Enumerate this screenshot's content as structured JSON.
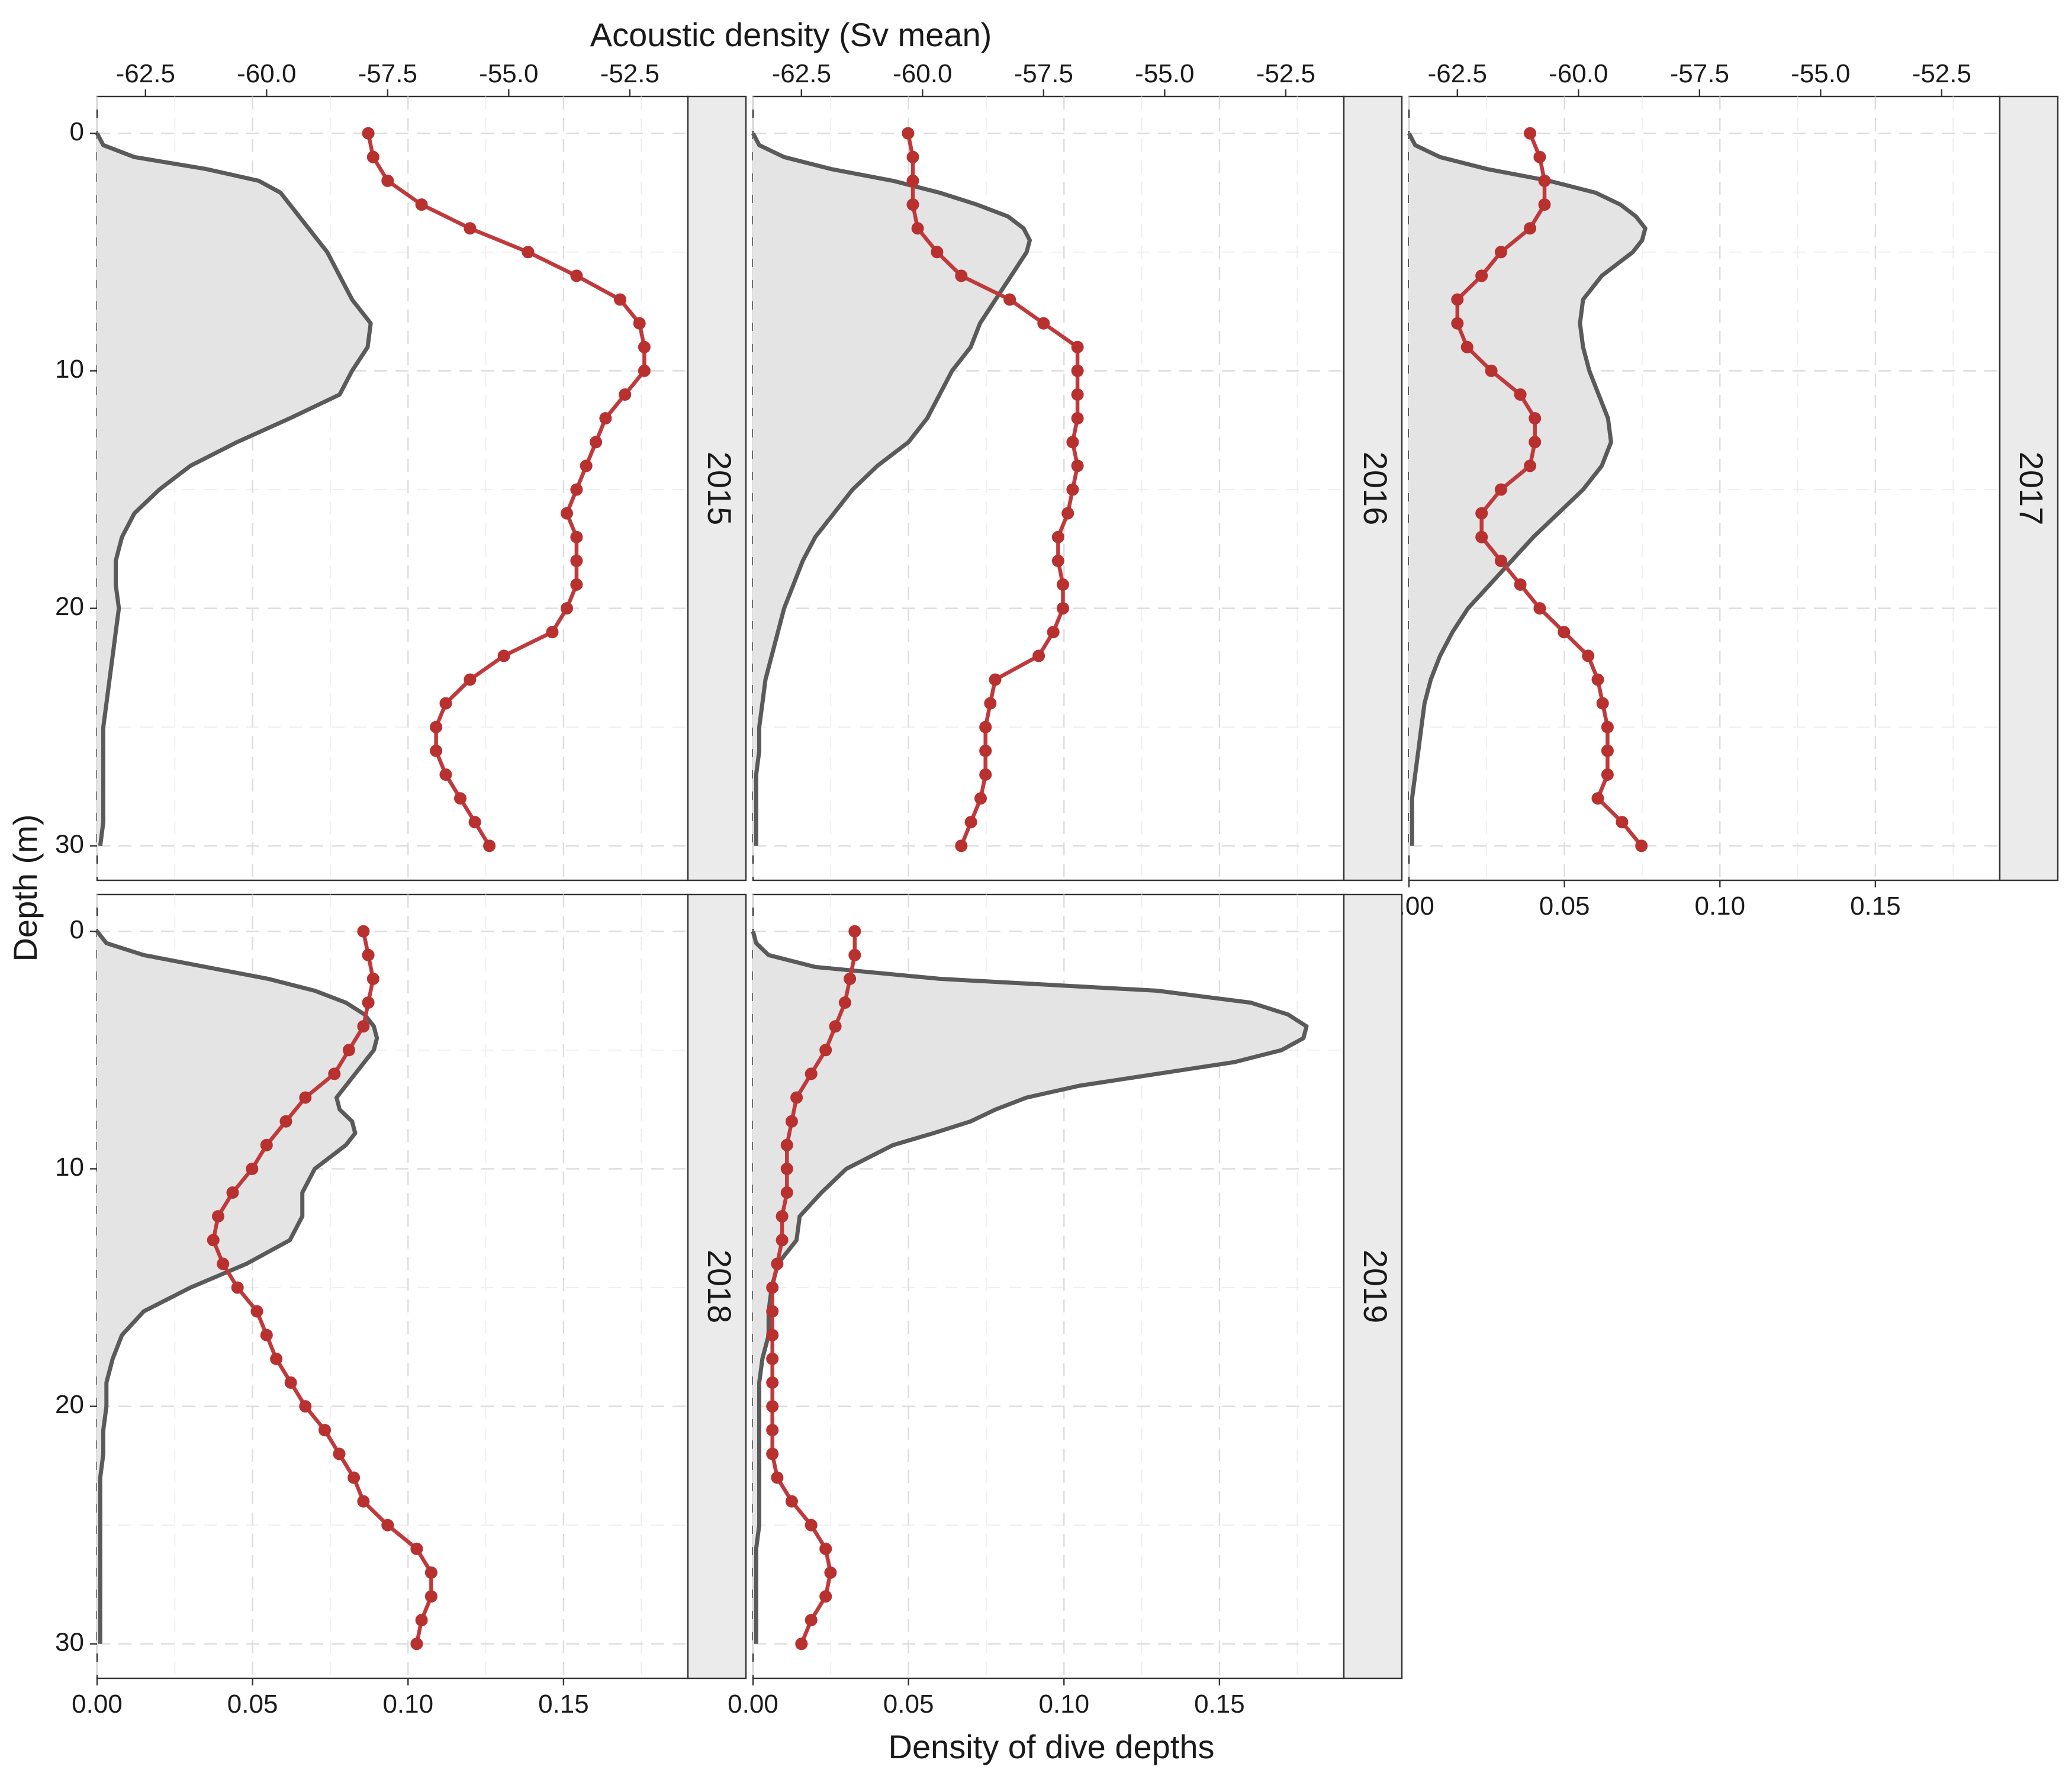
{
  "figure": {
    "ylabel": "Depth (m)",
    "xlabel_bottom": "Density of dive depths",
    "xlabel_top": "Acoustic density (Sv mean)"
  },
  "chart_data": {
    "type": "line",
    "ylabel": "Depth (m)",
    "xlabel": "Density of dive depths",
    "x2label": "Acoustic density (Sv mean)",
    "ylim": [
      0,
      30
    ],
    "y_reversed": true,
    "y_ticks": [
      0,
      10,
      20,
      30
    ],
    "xlim": [
      0,
      0.19
    ],
    "x_ticks": [
      0,
      0.05,
      0.1,
      0.15
    ],
    "x_tick_labels": [
      "0.00",
      "0.05",
      "0.10",
      "0.15"
    ],
    "x2lim": [
      -63.5,
      -51.3
    ],
    "x2_ticks": [
      -62.5,
      -60,
      -57.5,
      -55,
      -52.5
    ],
    "x2_tick_labels": [
      "-62.5",
      "-60.0",
      "-57.5",
      "-55.0",
      "-52.5"
    ],
    "grid": true,
    "colors": {
      "density": "#5a5a5a",
      "density_fill": "#e4e4e4",
      "sv": "#c0393b",
      "strip": "#ebebeb"
    },
    "panels": [
      {
        "label": "2015",
        "density": {
          "depth": [
            0,
            0.5,
            1,
            1.5,
            2,
            2.5,
            3,
            4,
            5,
            6,
            7,
            8,
            9,
            10,
            11,
            12,
            13,
            14,
            15,
            16,
            17,
            18,
            19,
            20,
            21,
            22,
            23,
            24,
            25,
            26,
            27,
            28,
            29,
            30
          ],
          "values": [
            0,
            0.002,
            0.012,
            0.035,
            0.052,
            0.059,
            0.062,
            0.068,
            0.074,
            0.078,
            0.082,
            0.088,
            0.087,
            0.082,
            0.078,
            0.062,
            0.045,
            0.03,
            0.02,
            0.012,
            0.008,
            0.006,
            0.006,
            0.007,
            0.006,
            0.005,
            0.004,
            0.003,
            0.002,
            0.002,
            0.002,
            0.002,
            0.002,
            0.001
          ]
        },
        "sv": {
          "depth": [
            0,
            1,
            2,
            3,
            4,
            5,
            6,
            7,
            8,
            9,
            10,
            11,
            12,
            13,
            14,
            15,
            16,
            17,
            18,
            19,
            20,
            21,
            22,
            23,
            24,
            25,
            26,
            27,
            28,
            29,
            30
          ],
          "values": [
            -57.9,
            -57.8,
            -57.5,
            -56.8,
            -55.8,
            -54.6,
            -53.6,
            -52.7,
            -52.3,
            -52.2,
            -52.2,
            -52.6,
            -53.0,
            -53.2,
            -53.4,
            -53.6,
            -53.8,
            -53.6,
            -53.6,
            -53.6,
            -53.8,
            -54.1,
            -55.1,
            -55.8,
            -56.3,
            -56.5,
            -56.5,
            -56.3,
            -56.0,
            -55.7,
            -55.4
          ]
        }
      },
      {
        "label": "2016",
        "density": {
          "depth": [
            0,
            0.5,
            1,
            1.5,
            2,
            2.5,
            3,
            3.5,
            4,
            4.5,
            5,
            6,
            7,
            8,
            9,
            10,
            11,
            12,
            13,
            14,
            15,
            16,
            17,
            18,
            19,
            20,
            21,
            22,
            23,
            24,
            25,
            26,
            27,
            28,
            29,
            30
          ],
          "values": [
            0,
            0.002,
            0.01,
            0.025,
            0.045,
            0.06,
            0.072,
            0.082,
            0.087,
            0.089,
            0.088,
            0.083,
            0.078,
            0.073,
            0.07,
            0.064,
            0.06,
            0.056,
            0.05,
            0.04,
            0.032,
            0.026,
            0.02,
            0.016,
            0.013,
            0.01,
            0.008,
            0.006,
            0.004,
            0.003,
            0.002,
            0.002,
            0.001,
            0.001,
            0.001,
            0.001
          ]
        },
        "sv": {
          "depth": [
            0,
            1,
            2,
            3,
            4,
            5,
            6,
            7,
            8,
            9,
            10,
            11,
            12,
            13,
            14,
            15,
            16,
            17,
            18,
            19,
            20,
            21,
            22,
            23,
            24,
            25,
            26,
            27,
            28,
            29,
            30
          ],
          "values": [
            -60.3,
            -60.2,
            -60.2,
            -60.2,
            -60.1,
            -59.7,
            -59.2,
            -58.2,
            -57.5,
            -56.8,
            -56.8,
            -56.8,
            -56.8,
            -56.9,
            -56.8,
            -56.9,
            -57.0,
            -57.2,
            -57.2,
            -57.1,
            -57.1,
            -57.3,
            -57.6,
            -58.5,
            -58.6,
            -58.7,
            -58.7,
            -58.7,
            -58.8,
            -59.0,
            -59.2
          ]
        }
      },
      {
        "label": "2017",
        "density": {
          "depth": [
            0,
            0.5,
            1,
            1.5,
            2,
            2.5,
            3,
            3.5,
            4,
            4.5,
            5,
            5.5,
            6,
            7,
            8,
            9,
            10,
            11,
            12,
            13,
            14,
            15,
            16,
            17,
            18,
            19,
            20,
            21,
            22,
            23,
            24,
            25,
            26,
            27,
            28,
            29,
            30
          ],
          "values": [
            0,
            0.002,
            0.01,
            0.025,
            0.045,
            0.06,
            0.068,
            0.073,
            0.076,
            0.075,
            0.072,
            0.067,
            0.062,
            0.056,
            0.055,
            0.056,
            0.058,
            0.061,
            0.064,
            0.065,
            0.062,
            0.056,
            0.048,
            0.04,
            0.033,
            0.026,
            0.019,
            0.014,
            0.01,
            0.007,
            0.005,
            0.004,
            0.003,
            0.002,
            0.001,
            0.001,
            0.001
          ]
        },
        "sv": {
          "depth": [
            0,
            1,
            2,
            3,
            4,
            5,
            6,
            7,
            8,
            9,
            10,
            11,
            12,
            13,
            14,
            15,
            16,
            17,
            18,
            19,
            20,
            21,
            22,
            23,
            24,
            25,
            26,
            27,
            28,
            29,
            30
          ],
          "values": [
            -61.0,
            -60.8,
            -60.7,
            -60.7,
            -61.0,
            -61.6,
            -62.0,
            -62.5,
            -62.5,
            -62.3,
            -61.8,
            -61.2,
            -60.9,
            -60.9,
            -61.0,
            -61.6,
            -62.0,
            -62.0,
            -61.6,
            -61.2,
            -60.8,
            -60.3,
            -59.8,
            -59.6,
            -59.5,
            -59.4,
            -59.4,
            -59.4,
            -59.6,
            -59.1,
            -58.7
          ]
        }
      },
      {
        "label": "2018",
        "density": {
          "depth": [
            0,
            0.5,
            1,
            1.5,
            2,
            2.5,
            3,
            3.5,
            4,
            4.5,
            5,
            6,
            7,
            7.5,
            8,
            8.5,
            9,
            10,
            11,
            12,
            13,
            14,
            15,
            16,
            17,
            18,
            19,
            20,
            21,
            22,
            23,
            24,
            25,
            26,
            27,
            28,
            29,
            30
          ],
          "values": [
            0,
            0.003,
            0.015,
            0.035,
            0.055,
            0.07,
            0.08,
            0.086,
            0.089,
            0.09,
            0.089,
            0.083,
            0.077,
            0.078,
            0.082,
            0.083,
            0.08,
            0.07,
            0.066,
            0.066,
            0.062,
            0.048,
            0.03,
            0.015,
            0.008,
            0.005,
            0.003,
            0.003,
            0.002,
            0.002,
            0.001,
            0.001,
            0.001,
            0.001,
            0.001,
            0.001,
            0.001,
            0.001
          ]
        },
        "sv": {
          "depth": [
            0,
            1,
            2,
            3,
            4,
            5,
            6,
            7,
            8,
            9,
            10,
            11,
            12,
            13,
            14,
            15,
            16,
            17,
            18,
            19,
            20,
            21,
            22,
            23,
            24,
            25,
            26,
            27,
            28,
            29,
            30
          ],
          "values": [
            -58.0,
            -57.9,
            -57.8,
            -57.9,
            -58.0,
            -58.3,
            -58.6,
            -59.2,
            -59.6,
            -60.0,
            -60.3,
            -60.7,
            -61.0,
            -61.1,
            -60.9,
            -60.6,
            -60.2,
            -60.0,
            -59.8,
            -59.5,
            -59.2,
            -58.8,
            -58.5,
            -58.2,
            -58.0,
            -57.5,
            -56.9,
            -56.6,
            -56.6,
            -56.8,
            -56.9
          ]
        }
      },
      {
        "label": "2019",
        "density": {
          "depth": [
            0,
            0.5,
            1,
            1.5,
            2,
            2.5,
            3,
            3.5,
            4,
            4.5,
            5,
            5.5,
            6,
            6.5,
            7,
            7.5,
            8,
            8.5,
            9,
            10,
            11,
            12,
            13,
            14,
            15,
            16,
            17,
            18,
            19,
            20,
            21,
            22,
            23,
            24,
            25,
            26,
            27,
            28,
            29,
            30
          ],
          "values": [
            0,
            0.001,
            0.005,
            0.02,
            0.06,
            0.13,
            0.16,
            0.172,
            0.178,
            0.177,
            0.17,
            0.155,
            0.13,
            0.105,
            0.088,
            0.078,
            0.07,
            0.058,
            0.045,
            0.03,
            0.022,
            0.015,
            0.014,
            0.008,
            0.006,
            0.005,
            0.005,
            0.003,
            0.002,
            0.002,
            0.002,
            0.002,
            0.002,
            0.002,
            0.002,
            0.001,
            0.001,
            0.001,
            0.001,
            0.001
          ]
        },
        "sv": {
          "depth": [
            0,
            1,
            2,
            3,
            4,
            5,
            6,
            7,
            8,
            9,
            10,
            11,
            12,
            13,
            14,
            15,
            16,
            17,
            18,
            19,
            20,
            21,
            22,
            23,
            24,
            25,
            26,
            27,
            28,
            29,
            30
          ],
          "values": [
            -61.4,
            -61.4,
            -61.5,
            -61.6,
            -61.8,
            -62.0,
            -62.3,
            -62.6,
            -62.7,
            -62.8,
            -62.8,
            -62.8,
            -62.9,
            -62.9,
            -63.0,
            -63.1,
            -63.1,
            -63.1,
            -63.1,
            -63.1,
            -63.1,
            -63.1,
            -63.1,
            -63.0,
            -62.7,
            -62.3,
            -62.0,
            -61.9,
            -62.0,
            -62.3,
            -62.5
          ]
        }
      }
    ]
  }
}
